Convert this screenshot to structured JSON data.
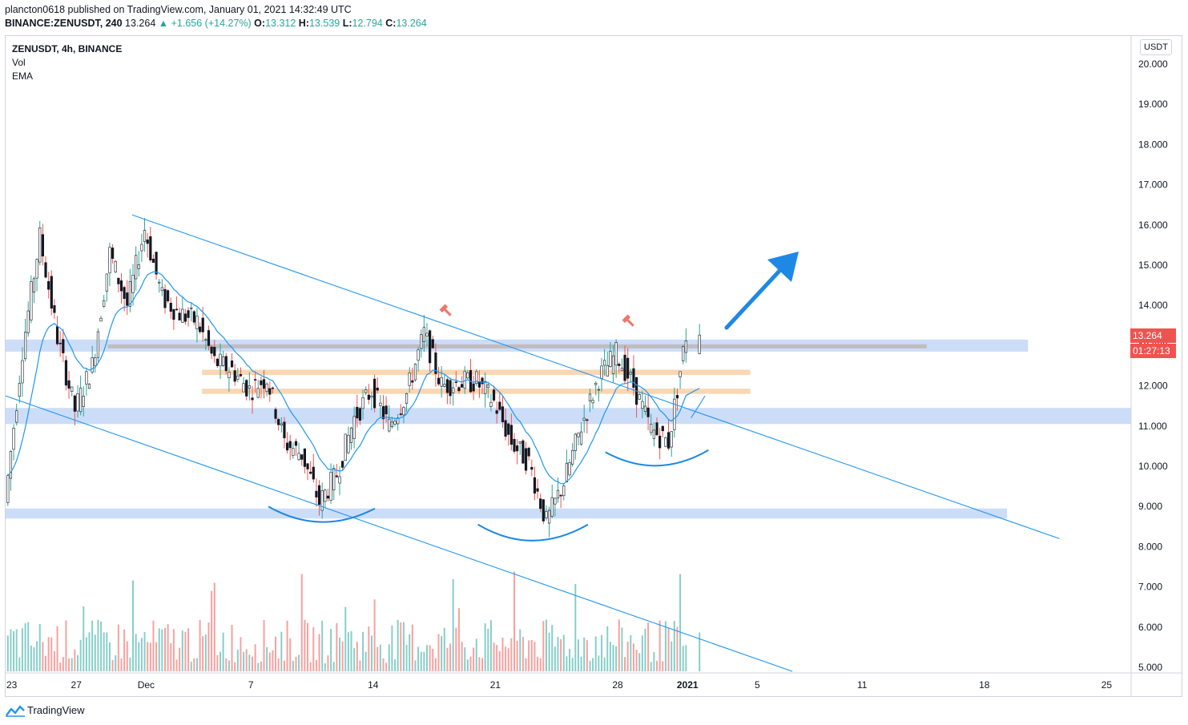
{
  "header": {
    "publisher": "plancton0618 published on TradingView.com, January 01, 2021 14:32:49 UTC",
    "symbol_line": "BINANCE:ZENUSDT, 240",
    "last": "13.264",
    "change": "▲ +1.656 (+14.27%)",
    "o_label": "O:",
    "o": "13.312",
    "h_label": "H:",
    "h": "13.539",
    "l_label": "L:",
    "l": "12.794",
    "c_label": "C:",
    "c": "13.264"
  },
  "legend": {
    "symbol": "ZENUSDT, 4h, BINANCE",
    "vol": "Vol",
    "ema": "EMA"
  },
  "axis": {
    "currency": "USDT",
    "price_labels": [
      "20.000",
      "19.000",
      "18.000",
      "17.000",
      "16.000",
      "15.000",
      "14.000",
      "13.000",
      "12.000",
      "11.000",
      "10.000",
      "9.000",
      "8.000",
      "7.000",
      "6.000",
      "5.000"
    ],
    "date_labels": [
      "23",
      "27",
      "Dec",
      "7",
      "14",
      "21",
      "28",
      "2021",
      "5",
      "11",
      "18",
      "25"
    ]
  },
  "price_tag": "13.264",
  "countdown": "01:27:13",
  "footer": {
    "brand": "TradingView"
  },
  "colors": {
    "up": "#26a69a",
    "down": "#ef5350",
    "line": "#2196f3",
    "zone_blue": "#bbd2f5",
    "zone_orange": "#f7c99a",
    "zone_gray": "#bdb4b0",
    "arrow": "#1e88e5",
    "marker": "#f0766b"
  },
  "chart_data": {
    "type": "candlestick",
    "symbol": "ZENUSDT",
    "interval": "4h",
    "x_range": [
      "2020-11-23",
      "2021-01-27"
    ],
    "ylim": [
      5.0,
      20.5
    ],
    "y_scale": "linear",
    "key_prices": {
      "last": 13.264,
      "open": 13.312,
      "high": 13.539,
      "low": 12.794,
      "close": 13.264,
      "change": 1.656,
      "change_pct": 14.27
    },
    "close_path": [
      [
        "2020-11-23",
        9.1
      ],
      [
        "2020-11-24",
        12.9
      ],
      [
        "2020-11-25",
        15.7
      ],
      [
        "2020-11-26",
        13.2
      ],
      [
        "2020-11-27",
        11.4
      ],
      [
        "2020-11-28",
        12.5
      ],
      [
        "2020-11-29",
        15.3
      ],
      [
        "2020-11-30",
        14.0
      ],
      [
        "2020-12-01",
        15.9
      ],
      [
        "2020-12-02",
        14.2
      ],
      [
        "2020-12-03",
        13.8
      ],
      [
        "2020-12-04",
        13.6
      ],
      [
        "2020-12-05",
        12.6
      ],
      [
        "2020-12-06",
        12.4
      ],
      [
        "2020-12-07",
        11.9
      ],
      [
        "2020-12-08",
        12.2
      ],
      [
        "2020-12-09",
        10.6
      ],
      [
        "2020-12-10",
        10.3
      ],
      [
        "2020-12-11",
        9.1
      ],
      [
        "2020-12-12",
        9.8
      ],
      [
        "2020-12-13",
        11.2
      ],
      [
        "2020-12-14",
        11.9
      ],
      [
        "2020-12-15",
        11.0
      ],
      [
        "2020-12-16",
        11.8
      ],
      [
        "2020-12-17",
        13.3
      ],
      [
        "2020-12-18",
        12.0
      ],
      [
        "2020-12-19",
        12.1
      ],
      [
        "2020-12-20",
        12.1
      ],
      [
        "2020-12-21",
        11.6
      ],
      [
        "2020-12-22",
        10.6
      ],
      [
        "2020-12-23",
        10.1
      ],
      [
        "2020-12-24",
        8.6
      ],
      [
        "2020-12-25",
        9.6
      ],
      [
        "2020-12-26",
        11.0
      ],
      [
        "2020-12-27",
        12.2
      ],
      [
        "2020-12-28",
        12.8
      ],
      [
        "2020-12-29",
        12.0
      ],
      [
        "2020-12-30",
        10.9
      ],
      [
        "2020-12-31",
        10.6
      ],
      [
        "2021-01-01",
        13.264
      ]
    ]
  }
}
